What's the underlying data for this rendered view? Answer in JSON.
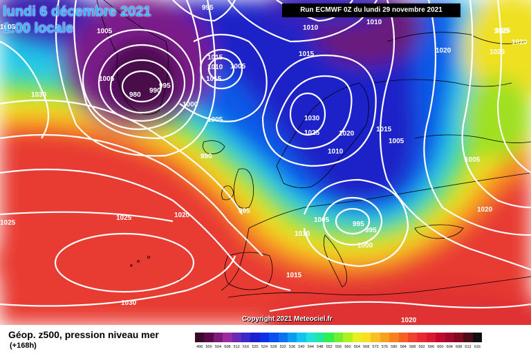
{
  "title_date": "lundi 6 décembre 2021",
  "title_time": "1:00 locale",
  "run_info": "Run ECMWF 0Z du lundi 29 novembre 2021",
  "copyright": "Copyright 2021 Meteociel.fr",
  "caption": "Géop. z500, pression niveau mer",
  "lead_time": "(+168h)",
  "isobar_labels": [
    "995",
    "1005",
    "1025",
    "1030",
    "1005",
    "980",
    "995",
    "990",
    "1000",
    "1015",
    "1010",
    "1005",
    "1015",
    "1005",
    "1015",
    "1010",
    "1010",
    "1020",
    "1025",
    "1025",
    "1020",
    "1005",
    "990",
    "1030",
    "1025",
    "1020",
    "1015",
    "1005",
    "1010",
    "1020",
    "1025",
    "995",
    "1005",
    "995",
    "1010",
    "995",
    "1000",
    "1015",
    "1030",
    "1025",
    "1020",
    "1020",
    "1005"
  ],
  "colorbar": {
    "labels": [
      "496",
      "500",
      "504",
      "508",
      "512",
      "516",
      "520",
      "524",
      "528",
      "532",
      "536",
      "540",
      "544",
      "548",
      "552",
      "556",
      "560",
      "564",
      "568",
      "572",
      "576",
      "580",
      "584",
      "588",
      "592",
      "596",
      "600",
      "604",
      "608",
      "612",
      "616"
    ],
    "colors": [
      "#3a0a28",
      "#5a0a4a",
      "#7d1a7a",
      "#9b2aa0",
      "#6a2ab8",
      "#3a2ac8",
      "#1a20d0",
      "#0a30e8",
      "#0a50f0",
      "#0a74f0",
      "#0a9cf0",
      "#14c4f0",
      "#20e0d8",
      "#20e8a0",
      "#30f050",
      "#70f030",
      "#b0f020",
      "#e8f020",
      "#f8e020",
      "#f8c020",
      "#f8a020",
      "#f88020",
      "#f86020",
      "#f04030",
      "#e82a30",
      "#d81a30",
      "#c00a30",
      "#a00a28",
      "#800a20",
      "#500a18",
      "#101010"
    ]
  }
}
